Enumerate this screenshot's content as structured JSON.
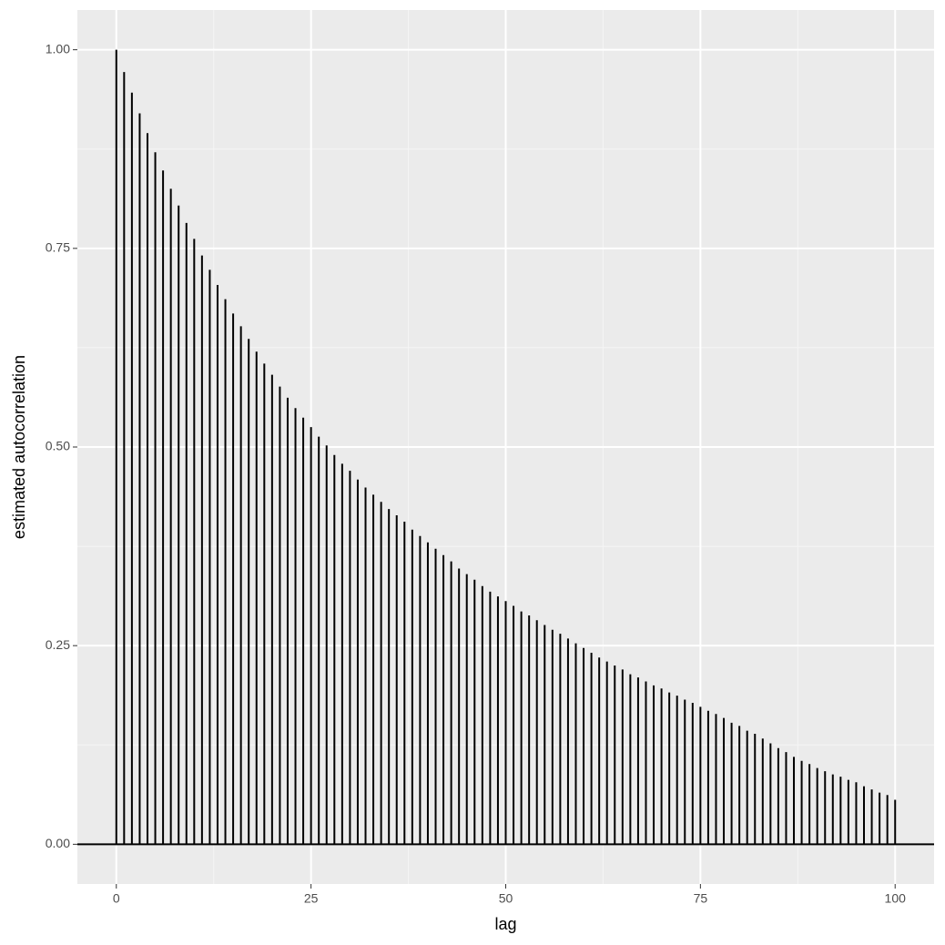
{
  "chart_data": {
    "type": "stem",
    "x_label": "lag",
    "y_label": "estimated autocorrelation",
    "x": [
      0,
      1,
      2,
      3,
      4,
      5,
      6,
      7,
      8,
      9,
      10,
      11,
      12,
      13,
      14,
      15,
      16,
      17,
      18,
      19,
      20,
      21,
      22,
      23,
      24,
      25,
      26,
      27,
      28,
      29,
      30,
      31,
      32,
      33,
      34,
      35,
      36,
      37,
      38,
      39,
      40,
      41,
      42,
      43,
      44,
      45,
      46,
      47,
      48,
      49,
      50,
      51,
      52,
      53,
      54,
      55,
      56,
      57,
      58,
      59,
      60,
      61,
      62,
      63,
      64,
      65,
      66,
      67,
      68,
      69,
      70,
      71,
      72,
      73,
      74,
      75,
      76,
      77,
      78,
      79,
      80,
      81,
      82,
      83,
      84,
      85,
      86,
      87,
      88,
      89,
      90,
      91,
      92,
      93,
      94,
      95,
      96,
      97,
      98,
      99,
      100
    ],
    "values": [
      1.0,
      0.972,
      0.946,
      0.92,
      0.895,
      0.871,
      0.848,
      0.825,
      0.804,
      0.782,
      0.762,
      0.741,
      0.723,
      0.704,
      0.686,
      0.668,
      0.652,
      0.636,
      0.62,
      0.605,
      0.591,
      0.576,
      0.562,
      0.549,
      0.537,
      0.525,
      0.513,
      0.502,
      0.49,
      0.479,
      0.47,
      0.459,
      0.449,
      0.44,
      0.431,
      0.422,
      0.414,
      0.406,
      0.396,
      0.388,
      0.38,
      0.372,
      0.364,
      0.356,
      0.347,
      0.34,
      0.333,
      0.325,
      0.318,
      0.312,
      0.306,
      0.3,
      0.293,
      0.288,
      0.282,
      0.276,
      0.27,
      0.265,
      0.259,
      0.253,
      0.247,
      0.241,
      0.235,
      0.23,
      0.225,
      0.22,
      0.214,
      0.21,
      0.205,
      0.2,
      0.196,
      0.191,
      0.187,
      0.182,
      0.178,
      0.173,
      0.168,
      0.164,
      0.159,
      0.153,
      0.149,
      0.143,
      0.139,
      0.133,
      0.127,
      0.121,
      0.116,
      0.11,
      0.105,
      0.101,
      0.096,
      0.092,
      0.088,
      0.085,
      0.081,
      0.078,
      0.073,
      0.069,
      0.065,
      0.062,
      0.056
    ],
    "color": "#000000",
    "hline": 0,
    "xlim": [
      -5,
      105
    ],
    "ylim": [
      -0.05,
      1.05
    ],
    "xticks": [
      0,
      25,
      50,
      75,
      100
    ],
    "yticks": [
      {
        "value": 0,
        "label": "0.00"
      },
      {
        "value": 0.25,
        "label": "0.25"
      },
      {
        "value": 0.5,
        "label": "0.50"
      },
      {
        "value": 0.75,
        "label": "0.75"
      },
      {
        "value": 1,
        "label": "1.00"
      }
    ],
    "grid": true
  }
}
